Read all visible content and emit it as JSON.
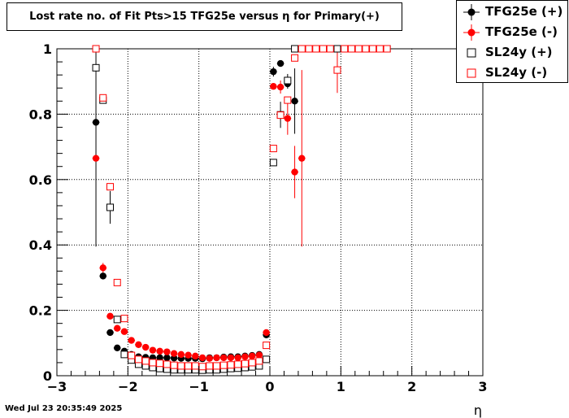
{
  "header": {
    "title": "Lost rate no. of Fit Pts>15 TFG25e versus η for Primary(+)"
  },
  "footer": {
    "timestamp": "Wed Jul 23 20:35:49 2025"
  },
  "colors": {
    "black": "#000000",
    "red": "#ff0000"
  },
  "chart_data": {
    "type": "scatter",
    "title": "Lost rate no. of Fit Pts>15 TFG25e versus η for Primary(+)",
    "xlabel": "η",
    "ylabel": "",
    "xlim": [
      -3,
      3
    ],
    "ylim": [
      0,
      1.0
    ],
    "x_ticks": [
      "−3",
      "−2",
      "−1",
      "0",
      "1",
      "2",
      "3"
    ],
    "y_ticks": [
      "0",
      "0.2",
      "0.4",
      "0.6",
      "0.8",
      "1"
    ],
    "grid": true,
    "legend_position": "top-right",
    "series": [
      {
        "name": "TFG25e (+)",
        "marker": "filled-circle",
        "color": "#000000",
        "points": [
          {
            "x": -2.45,
            "y": 0.775,
            "err": 0.38
          },
          {
            "x": -2.35,
            "y": 0.305,
            "err": 0.01
          },
          {
            "x": -2.25,
            "y": 0.132
          },
          {
            "x": -2.15,
            "y": 0.085
          },
          {
            "x": -2.05,
            "y": 0.075
          },
          {
            "x": -1.95,
            "y": 0.065
          },
          {
            "x": -1.85,
            "y": 0.058
          },
          {
            "x": -1.75,
            "y": 0.056
          },
          {
            "x": -1.65,
            "y": 0.055
          },
          {
            "x": -1.55,
            "y": 0.055
          },
          {
            "x": -1.45,
            "y": 0.055
          },
          {
            "x": -1.35,
            "y": 0.054
          },
          {
            "x": -1.25,
            "y": 0.053
          },
          {
            "x": -1.15,
            "y": 0.053
          },
          {
            "x": -1.05,
            "y": 0.053
          },
          {
            "x": -0.95,
            "y": 0.052
          },
          {
            "x": -0.85,
            "y": 0.055
          },
          {
            "x": -0.75,
            "y": 0.055
          },
          {
            "x": -0.65,
            "y": 0.057
          },
          {
            "x": -0.55,
            "y": 0.058
          },
          {
            "x": -0.45,
            "y": 0.058
          },
          {
            "x": -0.35,
            "y": 0.06
          },
          {
            "x": -0.25,
            "y": 0.062
          },
          {
            "x": -0.15,
            "y": 0.065
          },
          {
            "x": -0.05,
            "y": 0.125
          },
          {
            "x": 0.05,
            "y": 0.93,
            "err": 0.015
          },
          {
            "x": 0.15,
            "y": 0.955
          },
          {
            "x": 0.25,
            "y": 0.893,
            "err": 0.015
          },
          {
            "x": 0.35,
            "y": 0.84,
            "err": 0.1
          },
          {
            "x": 0.45,
            "y": 1.0
          },
          {
            "x": 0.55,
            "y": 1.0
          }
        ]
      },
      {
        "name": "TFG25e (-)",
        "marker": "filled-circle",
        "color": "#ff0000",
        "points": [
          {
            "x": -2.45,
            "y": 0.665
          },
          {
            "x": -2.35,
            "y": 0.33,
            "err": 0.015
          },
          {
            "x": -2.25,
            "y": 0.182
          },
          {
            "x": -2.15,
            "y": 0.145
          },
          {
            "x": -2.05,
            "y": 0.135
          },
          {
            "x": -1.95,
            "y": 0.108
          },
          {
            "x": -1.85,
            "y": 0.095
          },
          {
            "x": -1.75,
            "y": 0.087
          },
          {
            "x": -1.65,
            "y": 0.078
          },
          {
            "x": -1.55,
            "y": 0.075
          },
          {
            "x": -1.45,
            "y": 0.073
          },
          {
            "x": -1.35,
            "y": 0.068
          },
          {
            "x": -1.25,
            "y": 0.065
          },
          {
            "x": -1.15,
            "y": 0.063
          },
          {
            "x": -1.05,
            "y": 0.06
          },
          {
            "x": -0.95,
            "y": 0.055
          },
          {
            "x": -0.85,
            "y": 0.053
          },
          {
            "x": -0.75,
            "y": 0.055
          },
          {
            "x": -0.65,
            "y": 0.055
          },
          {
            "x": -0.55,
            "y": 0.055
          },
          {
            "x": -0.45,
            "y": 0.055
          },
          {
            "x": -0.35,
            "y": 0.058
          },
          {
            "x": -0.25,
            "y": 0.06
          },
          {
            "x": -0.15,
            "y": 0.063
          },
          {
            "x": -0.05,
            "y": 0.132
          },
          {
            "x": 0.05,
            "y": 0.885
          },
          {
            "x": 0.15,
            "y": 0.883,
            "err": 0.02
          },
          {
            "x": 0.25,
            "y": 0.787,
            "err": 0.05
          },
          {
            "x": 0.35,
            "y": 0.623,
            "err": 0.08
          },
          {
            "x": 0.45,
            "y": 0.665,
            "err": 0.27
          },
          {
            "x": 0.55,
            "y": 1.0
          },
          {
            "x": 0.65,
            "y": 1.0
          }
        ]
      },
      {
        "name": "SL24y (+)",
        "marker": "open-square",
        "color": "#000000",
        "points": [
          {
            "x": -2.45,
            "y": 0.942
          },
          {
            "x": -2.35,
            "y": 0.843
          },
          {
            "x": -2.25,
            "y": 0.515,
            "err": 0.05
          },
          {
            "x": -2.15,
            "y": 0.172
          },
          {
            "x": -2.05,
            "y": 0.065
          },
          {
            "x": -1.95,
            "y": 0.048
          },
          {
            "x": -1.85,
            "y": 0.035
          },
          {
            "x": -1.75,
            "y": 0.03
          },
          {
            "x": -1.65,
            "y": 0.025
          },
          {
            "x": -1.55,
            "y": 0.022
          },
          {
            "x": -1.45,
            "y": 0.02
          },
          {
            "x": -1.35,
            "y": 0.018
          },
          {
            "x": -1.25,
            "y": 0.018
          },
          {
            "x": -1.15,
            "y": 0.018
          },
          {
            "x": -1.05,
            "y": 0.018
          },
          {
            "x": -0.95,
            "y": 0.017
          },
          {
            "x": -0.85,
            "y": 0.018
          },
          {
            "x": -0.75,
            "y": 0.018
          },
          {
            "x": -0.65,
            "y": 0.02
          },
          {
            "x": -0.55,
            "y": 0.022
          },
          {
            "x": -0.45,
            "y": 0.023
          },
          {
            "x": -0.35,
            "y": 0.025
          },
          {
            "x": -0.25,
            "y": 0.027
          },
          {
            "x": -0.15,
            "y": 0.03
          },
          {
            "x": -0.05,
            "y": 0.05
          },
          {
            "x": 0.05,
            "y": 0.652
          },
          {
            "x": 0.15,
            "y": 0.798,
            "err": 0.04
          },
          {
            "x": 0.25,
            "y": 0.903,
            "err": 0.02
          },
          {
            "x": 0.35,
            "y": 1.0
          },
          {
            "x": 0.45,
            "y": 1.0
          },
          {
            "x": 0.55,
            "y": 1.0
          },
          {
            "x": 0.65,
            "y": 1.0
          },
          {
            "x": 0.75,
            "y": 1.0
          },
          {
            "x": 0.85,
            "y": 1.0
          },
          {
            "x": 0.95,
            "y": 1.0
          },
          {
            "x": 1.05,
            "y": 1.0
          },
          {
            "x": 1.15,
            "y": 1.0
          },
          {
            "x": 1.25,
            "y": 1.0
          },
          {
            "x": 1.35,
            "y": 1.0
          },
          {
            "x": 1.45,
            "y": 1.0
          },
          {
            "x": 1.55,
            "y": 1.0
          },
          {
            "x": 1.65,
            "y": 1.0
          }
        ]
      },
      {
        "name": "SL24y (-)",
        "marker": "open-square",
        "color": "#ff0000",
        "points": [
          {
            "x": -2.45,
            "y": 1.0
          },
          {
            "x": -2.35,
            "y": 0.85
          },
          {
            "x": -2.25,
            "y": 0.578
          },
          {
            "x": -2.15,
            "y": 0.285
          },
          {
            "x": -2.05,
            "y": 0.175
          },
          {
            "x": -1.95,
            "y": 0.062
          },
          {
            "x": -1.85,
            "y": 0.05
          },
          {
            "x": -1.75,
            "y": 0.045
          },
          {
            "x": -1.65,
            "y": 0.04
          },
          {
            "x": -1.55,
            "y": 0.038
          },
          {
            "x": -1.45,
            "y": 0.035
          },
          {
            "x": -1.35,
            "y": 0.032
          },
          {
            "x": -1.25,
            "y": 0.03
          },
          {
            "x": -1.15,
            "y": 0.03
          },
          {
            "x": -1.05,
            "y": 0.03
          },
          {
            "x": -0.95,
            "y": 0.028
          },
          {
            "x": -0.85,
            "y": 0.03
          },
          {
            "x": -0.75,
            "y": 0.03
          },
          {
            "x": -0.65,
            "y": 0.032
          },
          {
            "x": -0.55,
            "y": 0.033
          },
          {
            "x": -0.45,
            "y": 0.035
          },
          {
            "x": -0.35,
            "y": 0.037
          },
          {
            "x": -0.25,
            "y": 0.04
          },
          {
            "x": -0.15,
            "y": 0.045
          },
          {
            "x": -0.05,
            "y": 0.093
          },
          {
            "x": 0.05,
            "y": 0.695
          },
          {
            "x": 0.15,
            "y": 0.797
          },
          {
            "x": 0.25,
            "y": 0.843
          },
          {
            "x": 0.35,
            "y": 0.972
          },
          {
            "x": 0.45,
            "y": 1.0
          },
          {
            "x": 0.55,
            "y": 1.0
          },
          {
            "x": 0.65,
            "y": 1.0
          },
          {
            "x": 0.75,
            "y": 1.0
          },
          {
            "x": 0.85,
            "y": 1.0
          },
          {
            "x": 0.95,
            "y": 0.935,
            "err": 0.07
          },
          {
            "x": 1.05,
            "y": 1.0
          },
          {
            "x": 1.15,
            "y": 1.0
          },
          {
            "x": 1.25,
            "y": 1.0
          },
          {
            "x": 1.35,
            "y": 1.0
          },
          {
            "x": 1.45,
            "y": 1.0
          },
          {
            "x": 1.55,
            "y": 1.0
          },
          {
            "x": 1.65,
            "y": 1.0
          }
        ]
      }
    ]
  }
}
